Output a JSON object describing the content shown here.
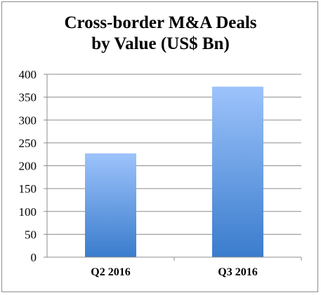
{
  "chart_data": {
    "type": "bar",
    "title_lines": [
      "Cross-border M&A Deals",
      "by Value (US$ Bn)"
    ],
    "categories": [
      "Q2 2016",
      "Q3 2016"
    ],
    "values": [
      227,
      373
    ],
    "xlabel": "",
    "ylabel": "",
    "ylim": [
      0,
      400
    ],
    "yticks": [
      0,
      50,
      100,
      150,
      200,
      250,
      300,
      350,
      400
    ],
    "grid": true,
    "legend": "none",
    "colors": {
      "bar_top": "#9dc3fb",
      "bar_bottom": "#3a7ccd",
      "grid": "#8c8c8c",
      "axis": "#8c8c8c"
    }
  }
}
